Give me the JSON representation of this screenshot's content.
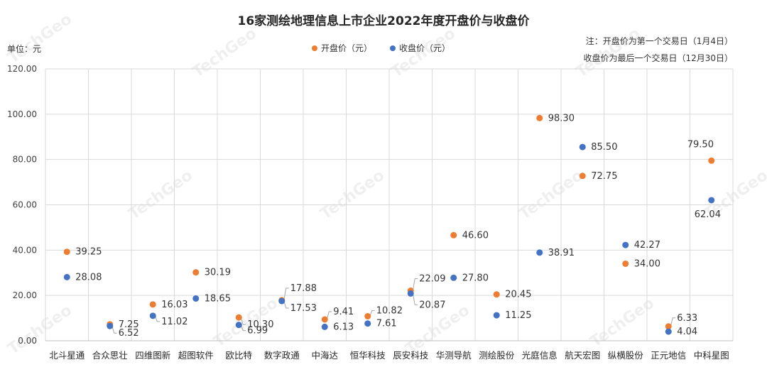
{
  "chart_data": {
    "type": "scatter",
    "title": "16家测绘地理信息上市企业2022年度开盘价与收盘价",
    "unit_label": "单位：元",
    "notes": [
      "注：开盘价为第一个交易日（1月4日）",
      "收盘价为最后一个交易日（12月30日）"
    ],
    "watermark": "TechGeo",
    "ylim": [
      0,
      120
    ],
    "yticks": [
      "0.00",
      "20.00",
      "40.00",
      "60.00",
      "80.00",
      "100.00",
      "120.00"
    ],
    "grid": true,
    "legend_position": "top",
    "categories": [
      "北斗星通",
      "合众思壮",
      "四维图新",
      "超图软件",
      "欧比特",
      "数字政通",
      "中海达",
      "恒华科技",
      "辰安科技",
      "华测导航",
      "测绘股份",
      "光庭信息",
      "航天宏图",
      "纵横股份",
      "正元地信",
      "中科星图"
    ],
    "series": [
      {
        "name": "开盘价（元）",
        "color": "#ed7d31",
        "values": [
          39.25,
          7.25,
          16.03,
          30.19,
          10.3,
          17.88,
          9.41,
          10.82,
          22.09,
          46.6,
          20.45,
          98.3,
          72.75,
          34.0,
          6.33,
          79.5
        ],
        "labels": [
          "39.25",
          "7.25",
          "16.03",
          "30.19",
          "10.30",
          "17.88",
          "9.41",
          "10.82",
          "22.09",
          "46.60",
          "20.45",
          "98.30",
          "72.75",
          "34.00",
          "6.33",
          "79.50"
        ]
      },
      {
        "name": "收盘价（元）",
        "color": "#4472c4",
        "values": [
          28.08,
          6.52,
          11.02,
          18.65,
          6.99,
          17.53,
          6.13,
          7.61,
          20.87,
          27.8,
          11.25,
          38.91,
          85.5,
          42.27,
          4.04,
          62.04
        ],
        "labels": [
          "28.08",
          "6.52",
          "11.02",
          "18.65",
          "6.99",
          "17.53",
          "6.13",
          "7.61",
          "20.87",
          "27.80",
          "11.25",
          "38.91",
          "85.50",
          "42.27",
          "4.04",
          "62.04"
        ]
      }
    ]
  }
}
